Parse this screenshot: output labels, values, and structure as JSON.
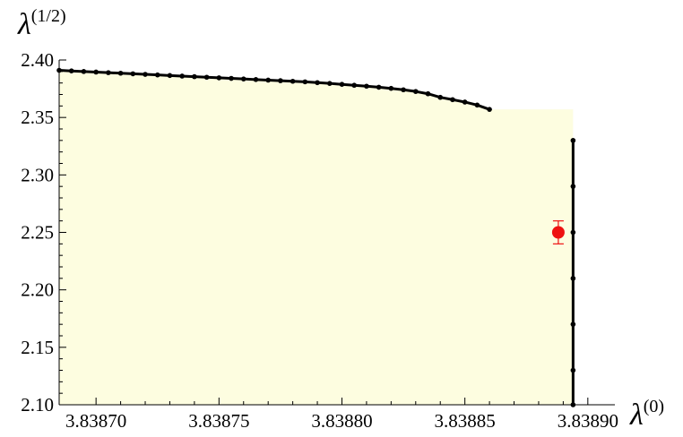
{
  "chart_data": {
    "type": "line",
    "title": "",
    "xlabel": "λ(0)",
    "xlabel_main": "λ",
    "xlabel_sup": "(0)",
    "ylabel": "λ(1/2)",
    "ylabel_main": "λ",
    "ylabel_sup": "(1/2)",
    "xlim": [
      3.838685,
      3.838911
    ],
    "ylim": [
      2.1,
      2.4
    ],
    "x_ticks": [
      3.8387,
      3.83875,
      3.8388,
      3.83885,
      3.8389
    ],
    "x_tick_labels": [
      "3.83870",
      "3.83875",
      "3.83880",
      "3.83885",
      "3.83890"
    ],
    "y_ticks": [
      2.1,
      2.15,
      2.2,
      2.25,
      2.3,
      2.35,
      2.4
    ],
    "y_tick_labels": [
      "2.10",
      "2.15",
      "2.20",
      "2.25",
      "2.30",
      "2.35",
      "2.40"
    ],
    "grid": false,
    "legend": "none",
    "fill_color": "#fdfde0",
    "series": [
      {
        "color": "#000000",
        "points": [
          [
            3.838685,
            2.391
          ],
          [
            3.83869,
            2.3905
          ],
          [
            3.838695,
            2.39
          ],
          [
            3.8387,
            2.3895
          ],
          [
            3.838705,
            2.389
          ],
          [
            3.83871,
            2.3885
          ],
          [
            3.838715,
            2.388
          ],
          [
            3.83872,
            2.3875
          ],
          [
            3.838725,
            2.387
          ],
          [
            3.83873,
            2.3865
          ],
          [
            3.838735,
            2.386
          ],
          [
            3.83874,
            2.3855
          ],
          [
            3.838745,
            2.385
          ],
          [
            3.83875,
            2.3845
          ],
          [
            3.838755,
            2.384
          ],
          [
            3.83876,
            2.3835
          ],
          [
            3.838765,
            2.383
          ],
          [
            3.83877,
            2.3825
          ],
          [
            3.838775,
            2.382
          ],
          [
            3.83878,
            2.3815
          ],
          [
            3.838785,
            2.381
          ],
          [
            3.83879,
            2.3803
          ],
          [
            3.838795,
            2.3796
          ],
          [
            3.8388,
            2.3788
          ],
          [
            3.838805,
            2.378
          ],
          [
            3.83881,
            2.3772
          ],
          [
            3.838815,
            2.3763
          ],
          [
            3.83882,
            2.3753
          ],
          [
            3.838825,
            2.3741
          ],
          [
            3.83883,
            2.3726
          ],
          [
            3.838835,
            2.3706
          ],
          [
            3.83884,
            2.3675
          ],
          [
            3.838845,
            2.3655
          ],
          [
            3.83885,
            2.3634
          ],
          [
            3.838855,
            2.3608
          ],
          [
            3.83886,
            2.357
          ]
        ]
      },
      {
        "color": "#000000",
        "points": [
          [
            3.838894,
            2.33
          ],
          [
            3.838894,
            2.29
          ],
          [
            3.838894,
            2.25
          ],
          [
            3.838894,
            2.21
          ],
          [
            3.838894,
            2.17
          ],
          [
            3.838894,
            2.13
          ],
          [
            3.838894,
            2.1
          ]
        ]
      }
    ],
    "annotation": {
      "x": 3.838888,
      "y": 2.25,
      "y_err": 0.01,
      "color": "#ee1111"
    }
  }
}
